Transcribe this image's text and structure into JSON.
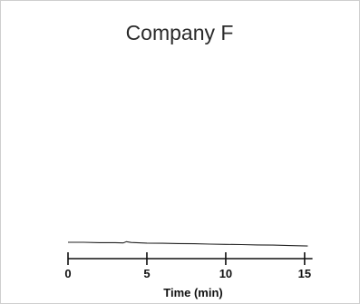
{
  "chart_data": {
    "type": "line",
    "title": "Company F",
    "xlabel": "Time (min)",
    "ylabel": "",
    "xlim": [
      0,
      15.5
    ],
    "ylim": [
      0,
      100
    ],
    "x_ticks": [
      0,
      5,
      10,
      15
    ],
    "x_tick_labels": [
      "0",
      "5",
      "10",
      "15"
    ],
    "grid": false,
    "series": [
      {
        "x": [
          0,
          1,
          2,
          3,
          3.5,
          3.7,
          4,
          5,
          6,
          7,
          8,
          9,
          10,
          11,
          12,
          13,
          14,
          15.2
        ],
        "y": [
          8.0,
          8.0,
          7.8,
          7.8,
          7.7,
          8.3,
          7.9,
          7.6,
          7.5,
          7.4,
          7.3,
          7.1,
          7.0,
          6.9,
          6.7,
          6.6,
          6.4,
          6.2
        ]
      }
    ],
    "colors": {
      "line": "#222222",
      "axis": "#111111",
      "border": "#cfcfcf"
    }
  }
}
